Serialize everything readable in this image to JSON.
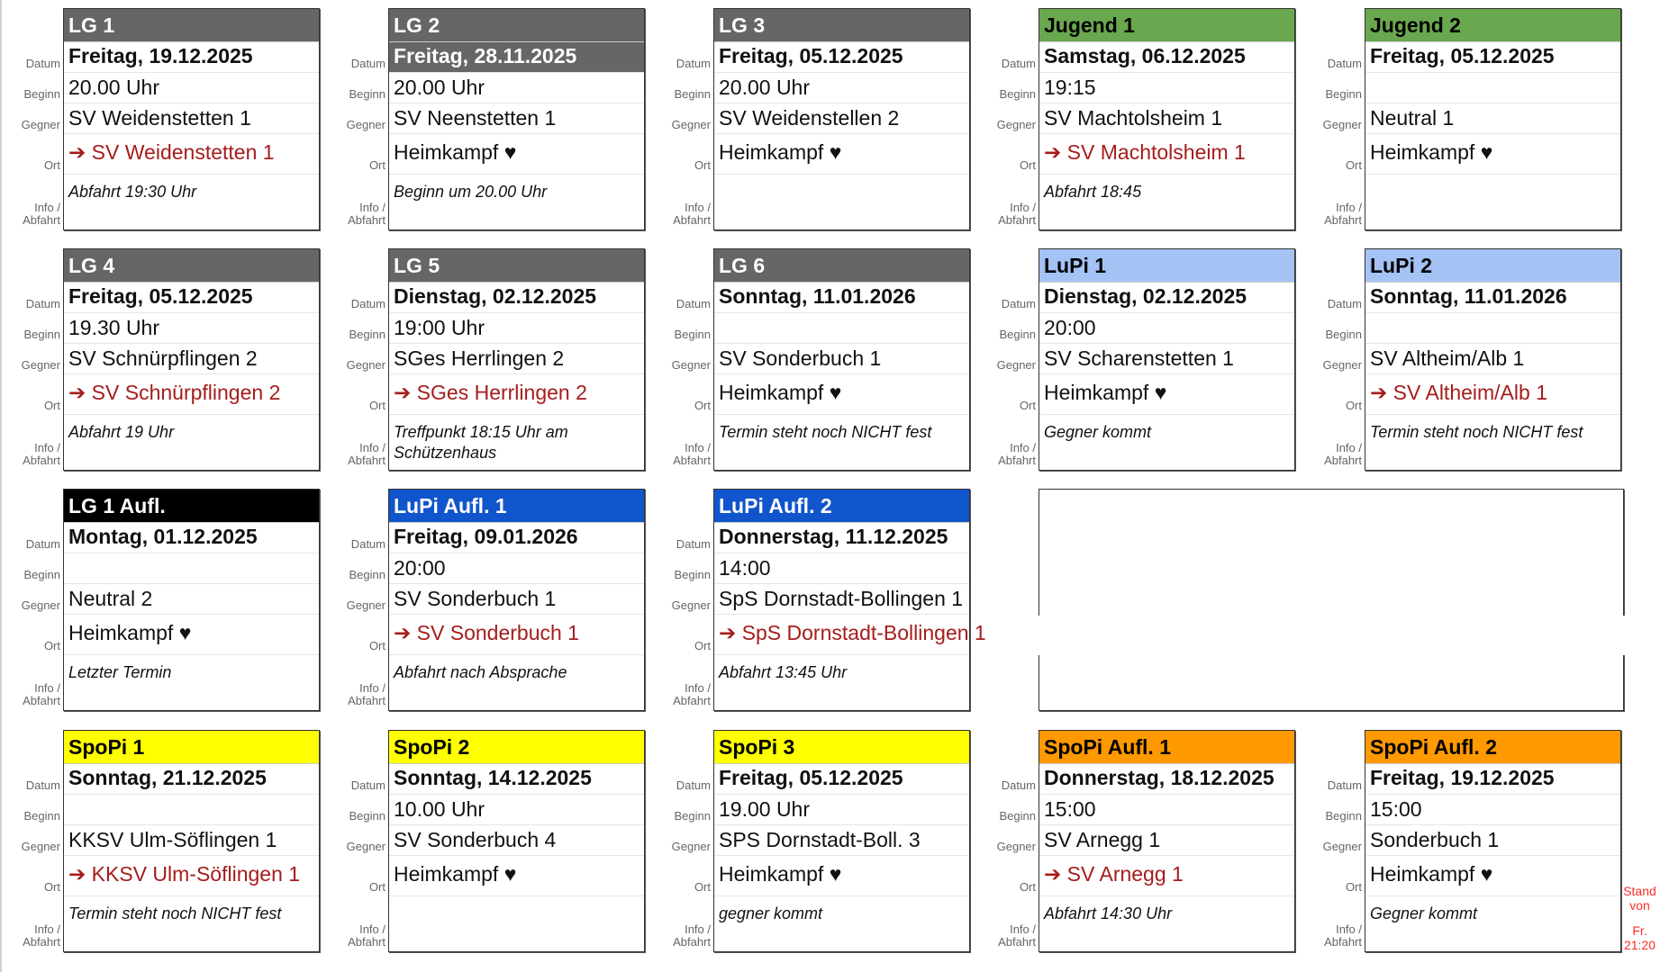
{
  "labels": {
    "datum": "Datum",
    "beginn": "Beginn",
    "gegner": "Gegner",
    "ort": "Ort",
    "info": "Info /",
    "abfahrt": "Abfahrt"
  },
  "home_heart": "♥",
  "arrow": "➔",
  "cards": [
    {
      "team": "LG 1",
      "header_color": "#666666",
      "header_text": "#ffffff",
      "date": "Freitag, 19.12.2025",
      "start": "20.00 Uhr",
      "opponent": "SV Weidenstetten 1",
      "location": "SV Weidenstetten 1",
      "away": true,
      "info": "Abfahrt 19:30 Uhr"
    },
    {
      "team": "LG 2",
      "header_color": "#666666",
      "header_text": "#ffffff",
      "date": "Freitag, 28.11.2025",
      "date_highlight": true,
      "start": "20.00 Uhr",
      "opponent": "SV Neenstetten 1",
      "location": "Heimkampf",
      "away": false,
      "info": "Beginn um 20.00 Uhr"
    },
    {
      "team": "LG 3",
      "header_color": "#666666",
      "header_text": "#ffffff",
      "date": "Freitag, 05.12.2025",
      "start": "20.00 Uhr",
      "opponent": "SV Weidenstellen 2",
      "location": "Heimkampf",
      "away": false,
      "info": ""
    },
    {
      "team": "Jugend 1",
      "header_color": "#6aa84f",
      "header_text": "#000000",
      "date": "Samstag, 06.12.2025",
      "start": "19:15",
      "opponent": "SV Machtolsheim 1",
      "location": "SV Machtolsheim 1",
      "away": true,
      "info": "Abfahrt 18:45"
    },
    {
      "team": "Jugend 2",
      "header_color": "#6aa84f",
      "header_text": "#000000",
      "date": "Freitag, 05.12.2025",
      "start": "",
      "opponent": "Neutral 1",
      "location": "Heimkampf",
      "away": false,
      "info": ""
    },
    {
      "team": "LG 4",
      "header_color": "#666666",
      "header_text": "#ffffff",
      "date": "Freitag, 05.12.2025",
      "start": "19.30 Uhr",
      "opponent": "SV Schnürpflingen 2",
      "location": "SV Schnürpflingen 2",
      "away": true,
      "info": "Abfahrt 19 Uhr"
    },
    {
      "team": "LG 5",
      "header_color": "#666666",
      "header_text": "#ffffff",
      "date": "Dienstag, 02.12.2025",
      "start": "19:00 Uhr",
      "opponent": "SGes Herrlingen 2",
      "location": "SGes Herrlingen 2",
      "away": true,
      "info": "Treffpunkt 18:15 Uhr am Schützenhaus"
    },
    {
      "team": "LG 6",
      "header_color": "#666666",
      "header_text": "#ffffff",
      "date": "Sonntag, 11.01.2026",
      "start": "",
      "opponent": "SV Sonderbuch 1",
      "location": "Heimkampf",
      "away": false,
      "info": "Termin steht noch NICHT fest"
    },
    {
      "team": "LuPi 1",
      "header_color": "#a4c2f4",
      "header_text": "#000000",
      "date": "Dienstag, 02.12.2025",
      "start": "20:00",
      "opponent": "SV Scharenstetten 1",
      "location": "Heimkampf",
      "away": false,
      "info": "Gegner kommt"
    },
    {
      "team": "LuPi 2",
      "header_color": "#a4c2f4",
      "header_text": "#000000",
      "date": "Sonntag, 11.01.2026",
      "start": "",
      "opponent": "SV Altheim/Alb 1",
      "location": "SV Altheim/Alb 1",
      "away": true,
      "info": "Termin steht noch NICHT fest"
    },
    {
      "team": "LG 1 Aufl.",
      "header_color": "#000000",
      "header_text": "#ffffff",
      "date": "Montag, 01.12.2025",
      "start": "",
      "opponent": "Neutral 2",
      "location": "Heimkampf",
      "away": false,
      "info": "Letzter Termin"
    },
    {
      "team": "LuPi Aufl. 1",
      "header_color": "#1155cc",
      "header_text": "#ffffff",
      "date": "Freitag, 09.01.2026",
      "start": "20:00",
      "opponent": "SV Sonderbuch 1",
      "location": "SV Sonderbuch 1",
      "away": true,
      "info": "Abfahrt nach Absprache"
    },
    {
      "team": "LuPi Aufl. 2",
      "header_color": "#1155cc",
      "header_text": "#ffffff",
      "date": "Donnerstag, 11.12.2025",
      "start": "14:00",
      "opponent": "SpS Dornstadt-Bollingen 1",
      "location": "SpS Dornstadt-Bollingen 1",
      "away": true,
      "info": "Abfahrt 13:45 Uhr"
    },
    {
      "team": "SpoPi 1",
      "header_color": "#ffff00",
      "header_text": "#000000",
      "date": "Sonntag, 21.12.2025",
      "start": "",
      "opponent": "KKSV Ulm-Söflingen 1",
      "location": "KKSV Ulm-Söflingen 1",
      "away": true,
      "info": "Termin steht noch NICHT fest"
    },
    {
      "team": "SpoPi 2",
      "header_color": "#ffff00",
      "header_text": "#000000",
      "date": "Sonntag, 14.12.2025",
      "start": "10.00 Uhr",
      "opponent": "SV Sonderbuch 4",
      "location": "Heimkampf",
      "away": false,
      "info": ""
    },
    {
      "team": "SpoPi 3",
      "header_color": "#ffff00",
      "header_text": "#000000",
      "date": "Freitag, 05.12.2025",
      "start": "19.00 Uhr",
      "opponent": "SPS Dornstadt-Boll. 3",
      "location": "Heimkampf",
      "away": false,
      "info": "gegner kommt"
    },
    {
      "team": "SpoPi Aufl. 1",
      "header_color": "#ff9900",
      "header_text": "#000000",
      "date": "Donnerstag, 18.12.2025",
      "start": "15:00",
      "opponent": "SV Arnegg 1",
      "location": "SV Arnegg 1",
      "away": true,
      "info": "Abfahrt 14:30 Uhr"
    },
    {
      "team": "SpoPi Aufl. 2",
      "header_color": "#ff9900",
      "header_text": "#000000",
      "date": "Freitag, 19.12.2025",
      "start": "15:00",
      "opponent": "Sonderbuch 1",
      "location": "Heimkampf",
      "away": false,
      "info": "Gegner kommt"
    }
  ],
  "status": {
    "line1": "Stand",
    "line2": "von",
    "line3": "Fr.",
    "line4": "21:20"
  }
}
